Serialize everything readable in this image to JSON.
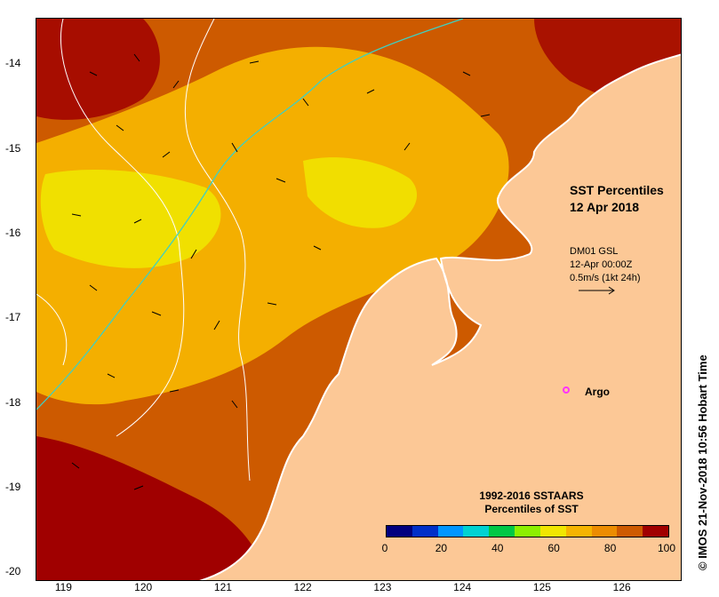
{
  "title": {
    "line1": "SST Percentiles",
    "line2": "12 Apr 2018"
  },
  "current_legend": {
    "source": "DM01 GSL",
    "time": "12-Apr 00:00Z",
    "scale": "0.5m/s (1kt 24h)"
  },
  "argo": {
    "label": "Argo",
    "lon": 125.25,
    "lat": -18.0,
    "color": "#ff33ff"
  },
  "colorbar": {
    "title_line1": "1992-2016 SSTAARS",
    "title_line2": "Percentiles of SST",
    "colors": [
      "#00007f",
      "#0030c8",
      "#0096ff",
      "#00d2d2",
      "#00c846",
      "#8cf000",
      "#f0e600",
      "#f5b400",
      "#ec8c00",
      "#cd5a00",
      "#a00000"
    ],
    "tick_labels": [
      "0",
      "20",
      "40",
      "60",
      "80",
      "100"
    ]
  },
  "axes": {
    "lon_ticks": [
      "119",
      "120",
      "121",
      "122",
      "123",
      "124",
      "125",
      "126"
    ],
    "lat_ticks": [
      "-14",
      "-15",
      "-16",
      "-17",
      "-18",
      "-19",
      "-20"
    ],
    "lon_range": [
      118.65,
      126.75
    ],
    "lat_range": [
      -20.1,
      -13.45
    ]
  },
  "credit": "© IMOS 21-Nov-2018 10:56 Hobart Time",
  "land_color": "#fcc896"
}
